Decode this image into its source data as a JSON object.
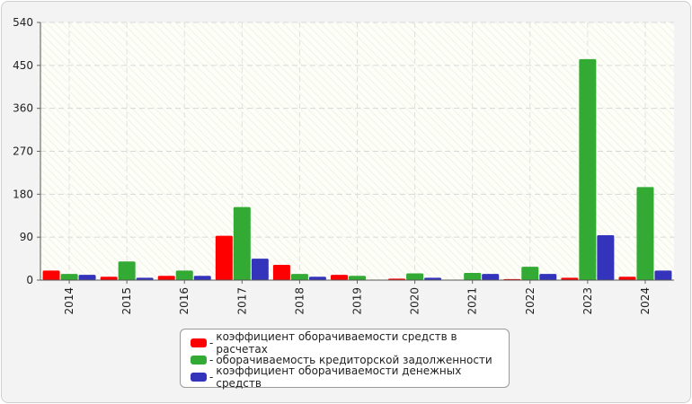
{
  "chart_data": {
    "type": "bar",
    "categories": [
      "2014",
      "2015",
      "2016",
      "2017",
      "2018",
      "2019",
      "2020",
      "2021",
      "2022",
      "2023",
      "2024"
    ],
    "series": [
      {
        "name": "коэффициент оборачиваемости средств в расчетах",
        "color": "#ff0000",
        "values": [
          20,
          7,
          9,
          93,
          32,
          11,
          3,
          0,
          2,
          5,
          7
        ]
      },
      {
        "name": "оборачиваемость кредиторской задолженности",
        "color": "#33aa33",
        "values": [
          13,
          39,
          20,
          153,
          13,
          9,
          14,
          15,
          28,
          463,
          195
        ]
      },
      {
        "name": "коэффициент оборачиваемости денежных средств",
        "color": "#3333bb",
        "values": [
          11,
          5,
          9,
          45,
          7,
          0,
          5,
          13,
          13,
          94,
          20
        ]
      }
    ],
    "ylim": [
      0,
      540
    ],
    "yticks": [
      0,
      90,
      180,
      270,
      360,
      450,
      540
    ],
    "grid": true,
    "legend_position": "bottom"
  }
}
